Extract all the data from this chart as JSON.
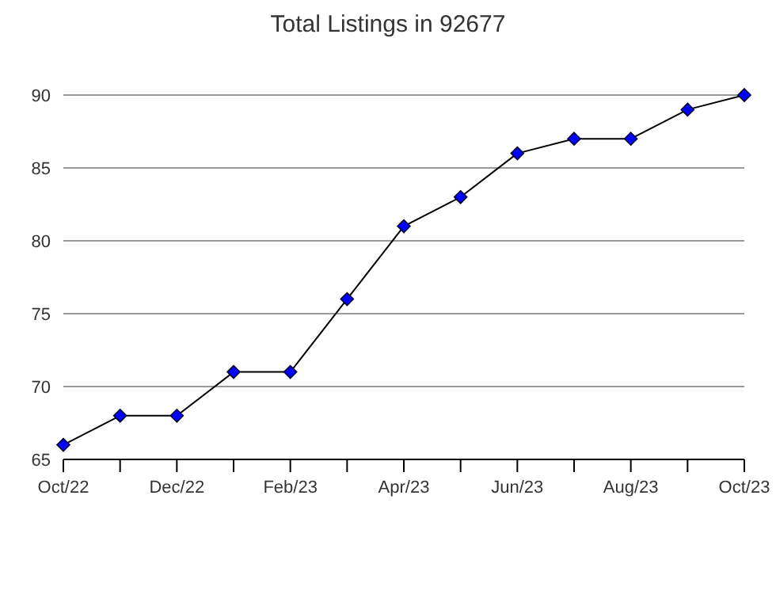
{
  "chart_data": {
    "type": "line",
    "title": "Total Listings in 92677",
    "categories": [
      "Oct/22",
      null,
      "Dec/22",
      null,
      "Feb/23",
      null,
      "Apr/23",
      null,
      "Jun/23",
      null,
      "Aug/23",
      null,
      "Oct/23"
    ],
    "series": [
      {
        "color": "#0000ff",
        "values": [
          66,
          68,
          68,
          71,
          71,
          76,
          81,
          83,
          86,
          87,
          87,
          89,
          90
        ]
      }
    ],
    "ylim": [
      65,
      90
    ],
    "yticks": [
      65,
      70,
      75,
      80,
      85,
      90
    ],
    "grid": "y",
    "marker": "diamond",
    "line_style": "solid"
  }
}
